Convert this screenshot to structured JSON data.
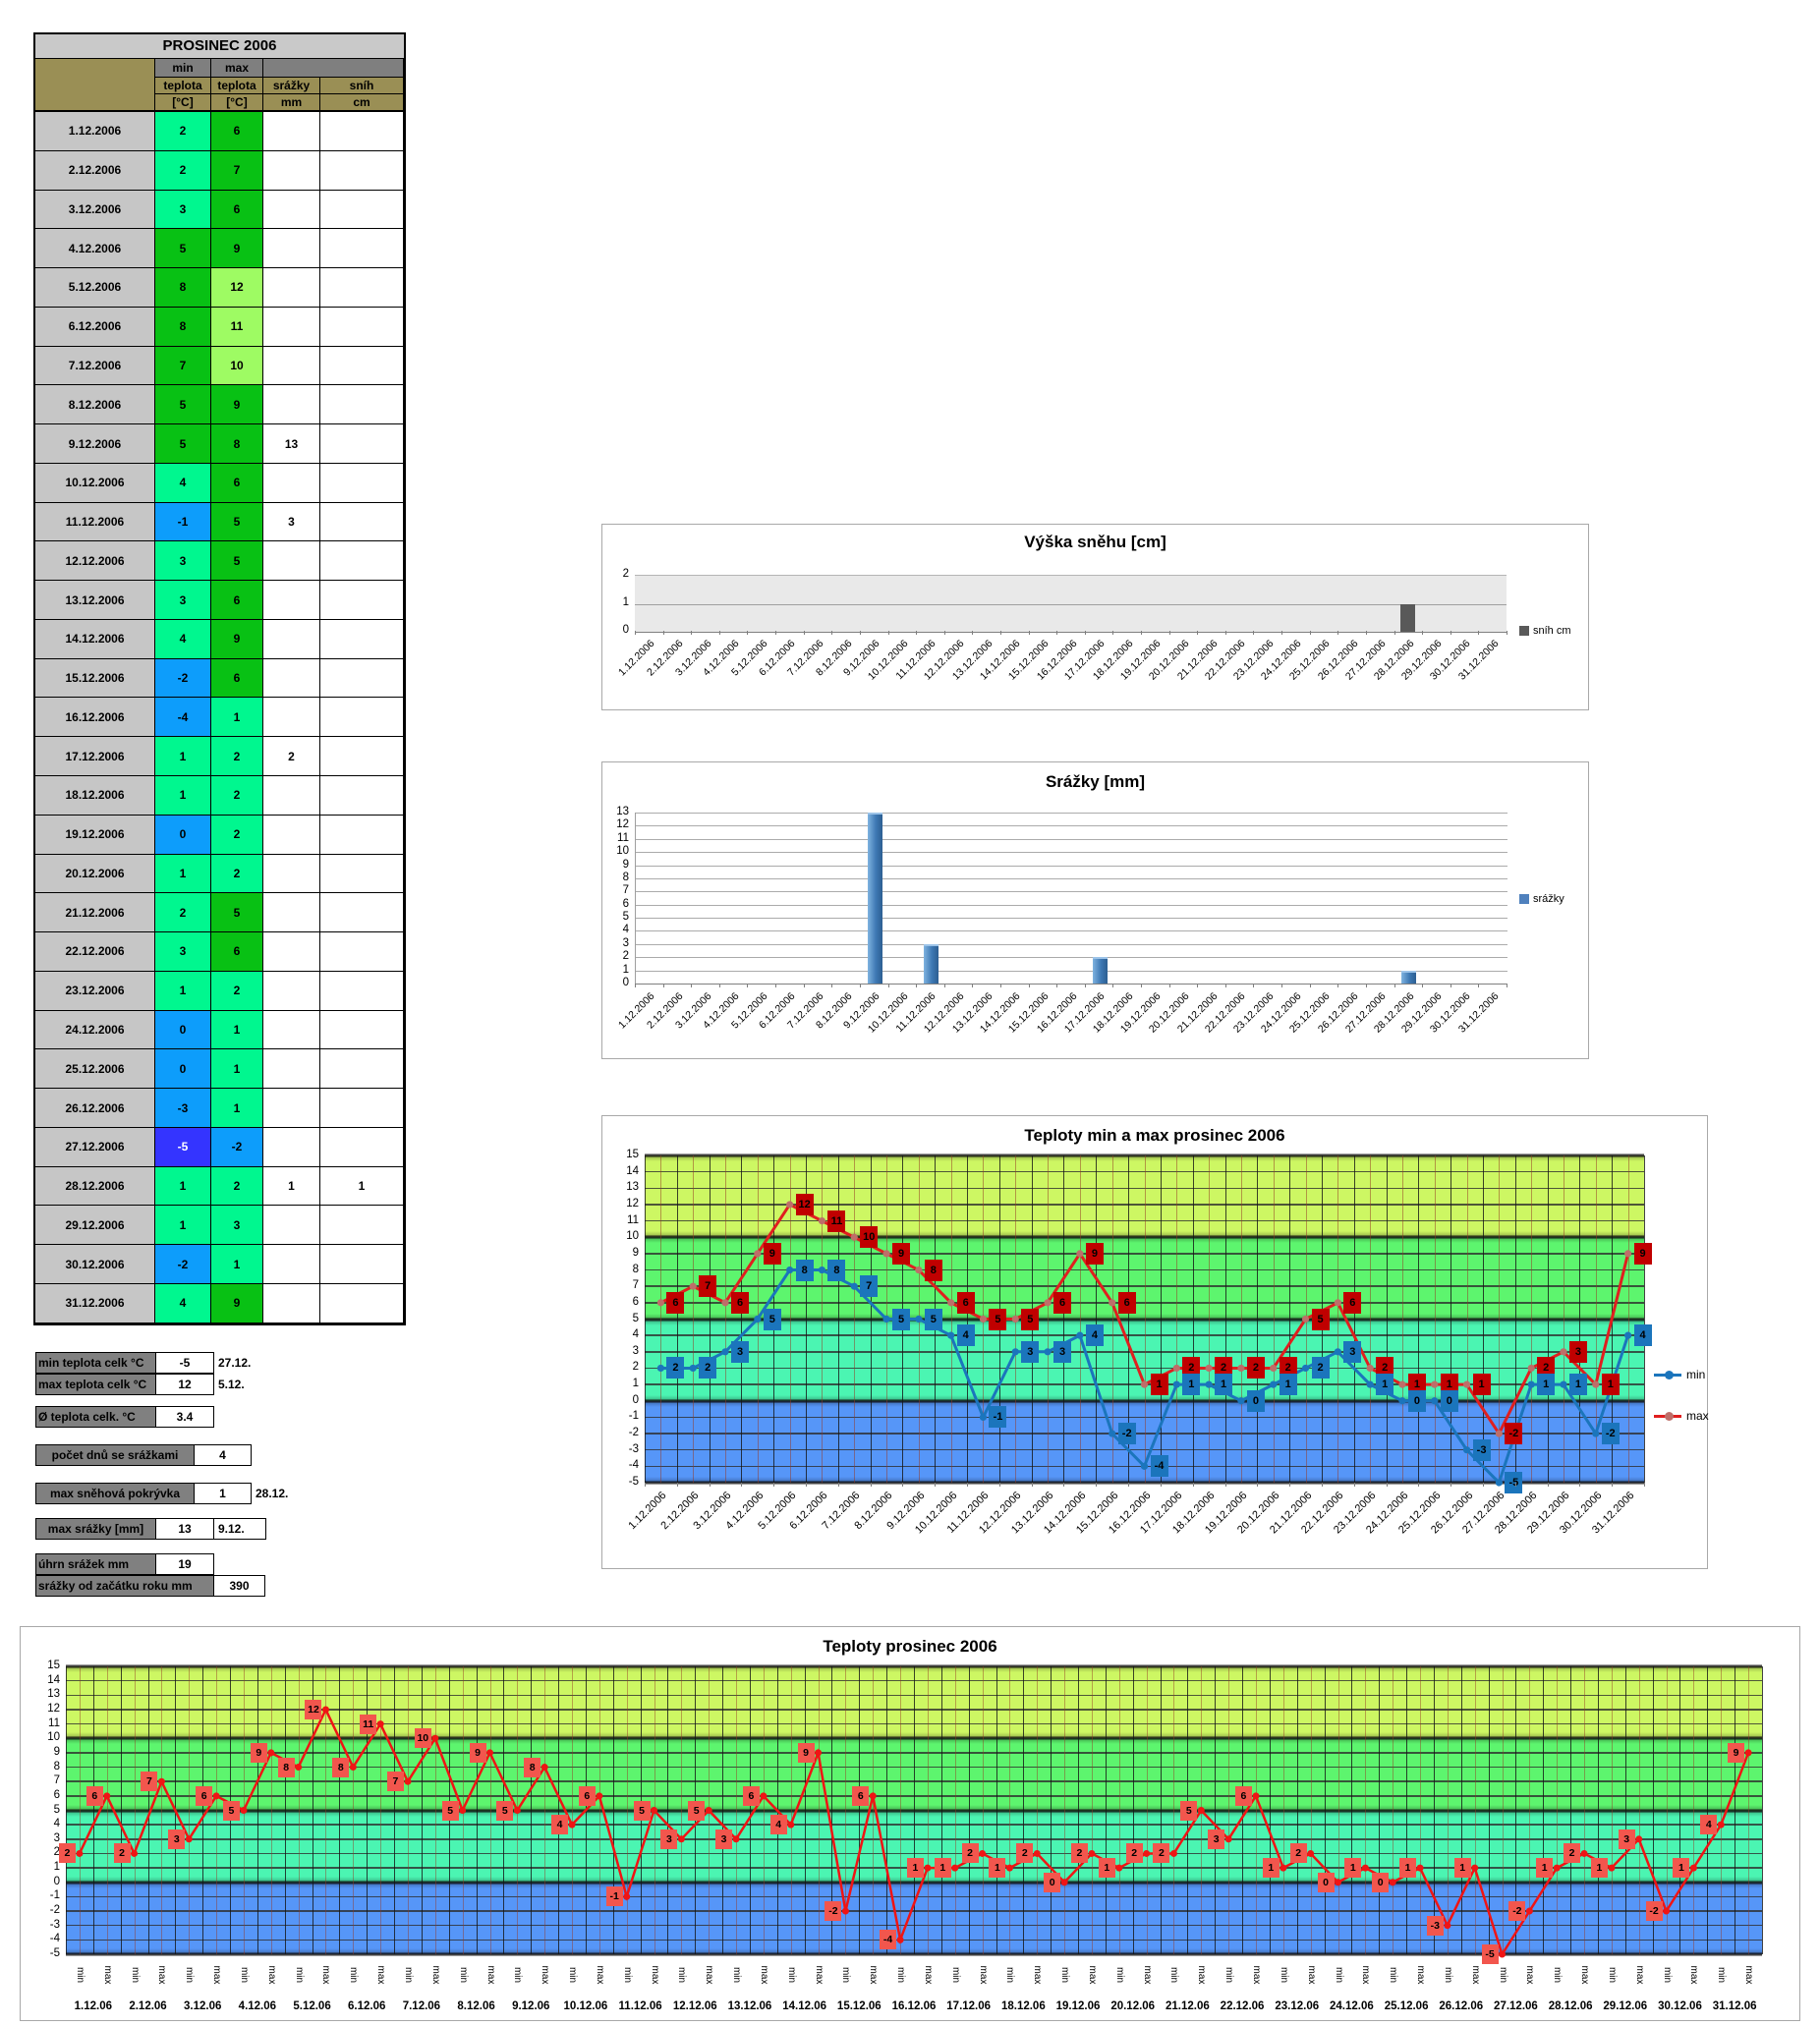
{
  "table": {
    "title": "PROSINEC 2006",
    "header": {
      "min": "min",
      "max": "max",
      "teplota": "teplota",
      "unit": "[°C]",
      "srazky": "srážky",
      "srazky_unit": "mm",
      "snih": "sníh",
      "snih_unit": "cm"
    }
  },
  "dates_long": [
    "1.12.2006",
    "2.12.2006",
    "3.12.2006",
    "4.12.2006",
    "5.12.2006",
    "6.12.2006",
    "7.12.2006",
    "8.12.2006",
    "9.12.2006",
    "10.12.2006",
    "11.12.2006",
    "12.12.2006",
    "13.12.2006",
    "14.12.2006",
    "15.12.2006",
    "16.12.2006",
    "17.12.2006",
    "18.12.2006",
    "19.12.2006",
    "20.12.2006",
    "21.12.2006",
    "22.12.2006",
    "23.12.2006",
    "24.12.2006",
    "25.12.2006",
    "26.12.2006",
    "27.12.2006",
    "28.12.2006",
    "29.12.2006",
    "30.12.2006",
    "31.12.2006"
  ],
  "dates_short": [
    "1.12.06",
    "2.12.06",
    "3.12.06",
    "4.12.06",
    "5.12.06",
    "6.12.06",
    "7.12.06",
    "8.12.06",
    "9.12.06",
    "10.12.06",
    "11.12.06",
    "12.12.06",
    "13.12.06",
    "14.12.06",
    "15.12.06",
    "16.12.06",
    "17.12.06",
    "18.12.06",
    "19.12.06",
    "20.12.06",
    "21.12.06",
    "22.12.06",
    "23.12.06",
    "24.12.06",
    "25.12.06",
    "26.12.06",
    "27.12.06",
    "28.12.06",
    "29.12.06",
    "30.12.06",
    "31.12.06"
  ],
  "summary": {
    "rows": [
      {
        "label": "min teplota celk °C",
        "value": "-5",
        "note": "27.12."
      },
      {
        "label": "max teplota celk °C",
        "value": "12",
        "note": "5.12."
      },
      {
        "label": "Ø teplota celk. °C",
        "value": "3.4",
        "note": ""
      },
      {
        "label": "počet dnů se srážkami",
        "value": "4",
        "note": ""
      },
      {
        "label": "max sněhová pokrývka",
        "value": "1",
        "note": "28.12."
      },
      {
        "label": "max srážky [mm]",
        "value": "13",
        "note": "9.12."
      },
      {
        "label": "úhrn srážek  mm",
        "value": "19",
        "note": ""
      },
      {
        "label": "srážky od začátku roku mm",
        "value": "390",
        "note": ""
      }
    ]
  },
  "chart_data": [
    {
      "type": "bar",
      "title": "Výška sněhu [cm]",
      "legend": "sníh cm",
      "ylim": [
        0,
        2
      ],
      "yticks": [
        2,
        1,
        0
      ],
      "categories_ref": "dates_long",
      "values": [
        0,
        0,
        0,
        0,
        0,
        0,
        0,
        0,
        0,
        0,
        0,
        0,
        0,
        0,
        0,
        0,
        0,
        0,
        0,
        0,
        0,
        0,
        0,
        0,
        0,
        0,
        0,
        1,
        0,
        0,
        0
      ]
    },
    {
      "type": "bar",
      "title": "Srážky [mm]",
      "legend": "srážky",
      "ylim": [
        0,
        13
      ],
      "yticks": [
        13,
        12,
        11,
        10,
        9,
        8,
        7,
        6,
        5,
        4,
        3,
        2,
        1,
        0
      ],
      "categories_ref": "dates_long",
      "values": [
        0,
        0,
        0,
        0,
        0,
        0,
        0,
        0,
        13,
        0,
        3,
        0,
        0,
        0,
        0,
        0,
        2,
        0,
        0,
        0,
        0,
        0,
        0,
        0,
        0,
        0,
        0,
        1,
        0,
        0,
        0
      ]
    },
    {
      "type": "line",
      "title": "Teploty min a max prosinec 2006",
      "legend": [
        "min",
        "max"
      ],
      "ylim": [
        -5,
        15
      ],
      "categories_ref": "dates_long",
      "series": [
        {
          "name": "min",
          "values": [
            2,
            2,
            3,
            5,
            8,
            8,
            7,
            5,
            5,
            4,
            -1,
            3,
            3,
            4,
            -2,
            -4,
            1,
            1,
            0,
            1,
            2,
            3,
            1,
            0,
            0,
            -3,
            -5,
            1,
            1,
            -2,
            4
          ]
        },
        {
          "name": "max",
          "values": [
            6,
            7,
            6,
            9,
            12,
            11,
            10,
            9,
            8,
            6,
            5,
            5,
            6,
            9,
            6,
            1,
            2,
            2,
            2,
            2,
            5,
            6,
            2,
            1,
            1,
            1,
            -2,
            2,
            3,
            1,
            9
          ]
        }
      ]
    },
    {
      "type": "line",
      "title": "Teploty prosinec 2006",
      "ylim": [
        -5,
        15
      ],
      "x_minor_labels": [
        "min",
        "max"
      ],
      "categories_ref": "dates_short",
      "note": "values are min,max interleaved per day from chart 3 series"
    }
  ],
  "colors": {
    "table_title_bg": "#C9C9C9",
    "header_gray": "#7F7F7F",
    "header_olive": "#9A8F55",
    "date_cell_bg": "#C6C6C6",
    "temp_ge10": "#9EFB63",
    "temp_ge5": "#08C114",
    "temp_ge1": "#00F78F",
    "temp_ge_neg4": "#0D9DFB",
    "temp_lt_neg4": "#3434FF",
    "summary_label_bg": "#808080",
    "snow_bar": "#595959",
    "snow_plot_bg": "#E9E9E9",
    "rain_bar_light": "#7FB3E0",
    "rain_bar_dark": "#2C5E91",
    "rain_legend": "#4F81BD",
    "band_10_15": "#CDF763",
    "band_5_10": "#5DF56E",
    "band_0_5": "#4BF5B2",
    "band_neg5_0": "#5696F8",
    "min_color": "#1B75BC",
    "max_line": "#E01F1F",
    "max_box": "#C00000",
    "max_marker": "#BE6E69",
    "seq_line": "#F01414",
    "seq_label_bg": "#F2564D"
  }
}
